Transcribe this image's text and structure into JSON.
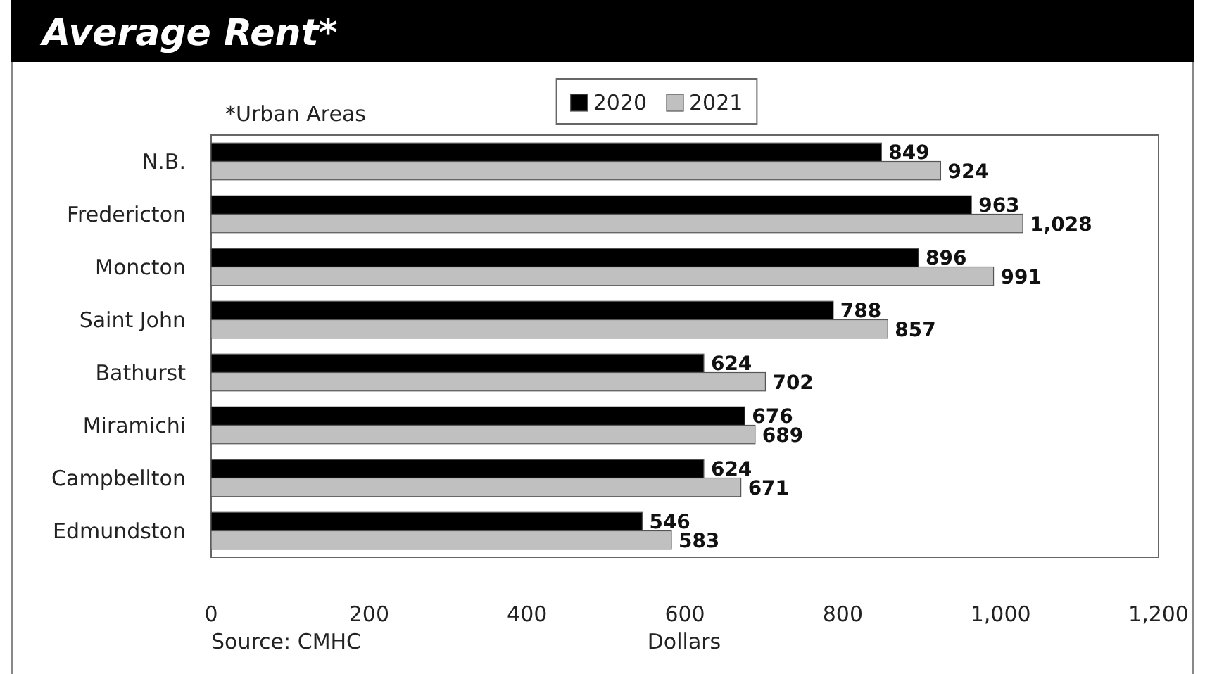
{
  "chart_data": {
    "type": "bar",
    "orientation": "horizontal",
    "title": "Average Rent*",
    "xlabel": "Dollars",
    "categories": [
      "N.B.",
      "Fredericton",
      "Moncton",
      "Saint John",
      "Bathurst",
      "Miramichi",
      "Campbellton",
      "Edmundston"
    ],
    "series": [
      {
        "name": "2020",
        "color": "#000000",
        "values": [
          849,
          963,
          896,
          788,
          624,
          676,
          624,
          546
        ],
        "value_labels": [
          "849",
          "963",
          "896",
          "788",
          "624",
          "676",
          "624",
          "546"
        ]
      },
      {
        "name": "2021",
        "color": "#c0c0c0",
        "values": [
          924,
          1028,
          991,
          857,
          702,
          689,
          671,
          583
        ],
        "value_labels": [
          "924",
          "1,028",
          "991",
          "857",
          "702",
          "689",
          "671",
          "583"
        ]
      }
    ],
    "xlim": [
      0,
      1200
    ],
    "xticks": [
      0,
      200,
      400,
      600,
      800,
      {
        "value": 1000,
        "label": "1,000"
      },
      {
        "value": 1200,
        "label": "1,200"
      }
    ],
    "grid": false,
    "legend": "top",
    "annotations": [
      "*Urban Areas",
      "Source: CMHC"
    ]
  }
}
